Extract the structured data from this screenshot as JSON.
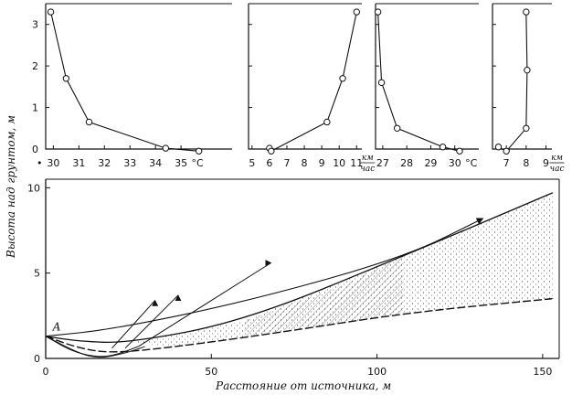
{
  "chart_data": [
    {
      "type": "line",
      "panel": "temperature-left",
      "ylabel": "Высота над грунтом, м",
      "ylim": [
        0,
        3.5
      ],
      "y_ticks": [
        "0",
        "1",
        "2",
        "3"
      ],
      "xlim": [
        29.7,
        37.0
      ],
      "x_ticks": [
        "30",
        "31",
        "32",
        "33",
        "34",
        "35"
      ],
      "x_unit": "°C",
      "x_extra_tick": "•",
      "series": [
        {
          "values": [
            [
              29.9,
              3.3
            ],
            [
              30.5,
              1.7
            ],
            [
              31.4,
              0.65
            ],
            [
              34.4,
              0.02
            ],
            [
              35.7,
              -0.05
            ]
          ]
        }
      ]
    },
    {
      "type": "line",
      "panel": "wind-left",
      "ylim": [
        0,
        3.5
      ],
      "xlim": [
        4.8,
        11.3
      ],
      "x_ticks": [
        "5",
        "6",
        "7",
        "8",
        "9",
        "10",
        "11"
      ],
      "x_unit": [
        "км",
        "час"
      ],
      "series": [
        {
          "values": [
            [
              6.0,
              0.02
            ],
            [
              6.1,
              -0.05
            ],
            [
              9.3,
              0.65
            ],
            [
              10.2,
              1.7
            ],
            [
              11.0,
              3.3
            ]
          ]
        }
      ]
    },
    {
      "type": "line",
      "panel": "temperature-right",
      "ylim": [
        0,
        3.5
      ],
      "xlim": [
        26.7,
        31.0
      ],
      "x_ticks": [
        "27",
        "28",
        "29",
        "30"
      ],
      "x_unit": "°C",
      "series": [
        {
          "values": [
            [
              26.8,
              3.3
            ],
            [
              26.95,
              1.6
            ],
            [
              27.6,
              0.5
            ],
            [
              29.5,
              0.05
            ],
            [
              30.2,
              -0.05
            ]
          ]
        }
      ]
    },
    {
      "type": "line",
      "panel": "wind-right",
      "ylim": [
        0,
        3.5
      ],
      "xlim": [
        6.3,
        9.3
      ],
      "x_ticks": [
        "7",
        "8",
        "9"
      ],
      "x_unit": [
        "км",
        "час"
      ],
      "series": [
        {
          "values": [
            [
              6.6,
              0.05
            ],
            [
              7.0,
              -0.05
            ],
            [
              8.0,
              0.5
            ],
            [
              8.05,
              1.9
            ],
            [
              8.0,
              3.3
            ]
          ]
        }
      ]
    },
    {
      "type": "line",
      "panel": "trajectories",
      "xlabel": "Расстояние от источника, м",
      "xlim": [
        0,
        155
      ],
      "ylim": [
        0,
        10.5
      ],
      "x_ticks": [
        "0",
        "50",
        "100",
        "150"
      ],
      "y_ticks": [
        "0",
        "5",
        "10"
      ],
      "point_label": "А",
      "series": [
        {
          "values": [
            [
              0,
              1.3
            ],
            [
              10,
              1.0
            ],
            [
              25,
              0.9
            ],
            [
              60,
              2.2
            ],
            [
              108,
              6.0
            ],
            [
              153,
              9.7
            ]
          ]
        },
        {
          "values": [
            [
              0,
              1.3
            ],
            [
              20,
              1.7
            ],
            [
              60,
              3.3
            ],
            [
              108,
              5.9
            ],
            [
              132,
              8.2
            ]
          ]
        },
        {
          "values": [
            [
              0,
              1.3
            ],
            [
              10,
              0.6
            ],
            [
              20,
              0.3
            ],
            [
              40,
              0.7
            ],
            [
              70,
              1.5
            ],
            [
              110,
              2.7
            ],
            [
              153,
              3.5
            ]
          ]
        },
        {
          "values": [
            [
              0,
              1.3
            ],
            [
              8,
              0.4
            ],
            [
              16,
              0.05
            ],
            [
              22,
              0.25
            ],
            [
              28,
              0.7
            ]
          ]
        },
        {
          "values": [
            [
              0,
              1.3
            ],
            [
              10,
              0.3
            ],
            [
              16,
              0.0
            ],
            [
              24,
              0.3
            ],
            [
              30,
              0.7
            ]
          ]
        },
        {
          "values": [
            [
              20,
              0.6
            ],
            [
              33,
              3.4
            ]
          ]
        },
        {
          "values": [
            [
              24,
              0.6
            ],
            [
              40,
              3.7
            ]
          ]
        },
        {
          "values": [
            [
              28,
              0.7
            ],
            [
              68,
              5.6
            ]
          ]
        }
      ]
    }
  ]
}
